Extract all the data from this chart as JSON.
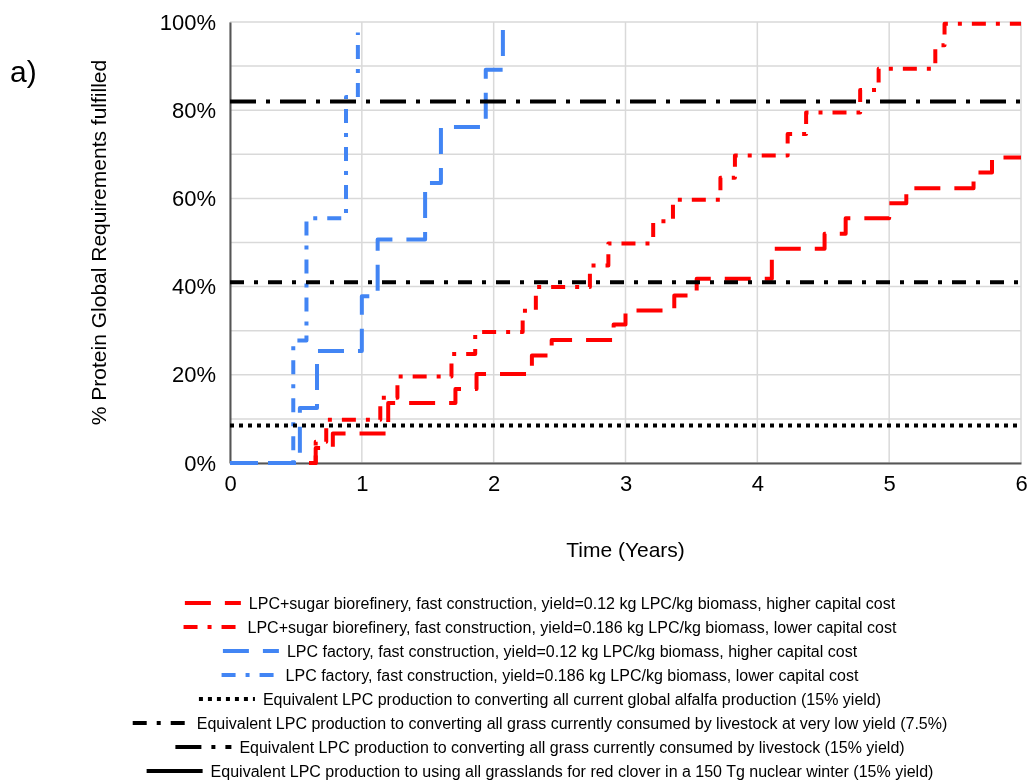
{
  "chart_data": {
    "type": "step",
    "xlabel": "Time (Years)",
    "ylabel": "% Protein Global Requirements fulfilled",
    "annotations": [
      "a)"
    ],
    "xlim": [
      0,
      6
    ],
    "ylim": [
      0,
      100
    ],
    "xticks": [
      0,
      1,
      2,
      3,
      4,
      5,
      6
    ],
    "yticks": [
      {
        "value": 0,
        "label": "0%"
      },
      {
        "value": 10,
        "label": null
      },
      {
        "value": 20,
        "label": "20%"
      },
      {
        "value": 30,
        "label": null
      },
      {
        "value": 40,
        "label": "40%"
      },
      {
        "value": 50,
        "label": null
      },
      {
        "value": 60,
        "label": "60%"
      },
      {
        "value": 70,
        "label": null
      },
      {
        "value": 80,
        "label": "80%"
      },
      {
        "value": 90,
        "label": null
      },
      {
        "value": 100,
        "label": "100%"
      }
    ],
    "grid": true,
    "legend": "bottom",
    "marker": "none",
    "series": [
      {
        "name": "LPC+sugar biorefinery, fast construction, yield=0.12 kg LPC/kg biomass, higher capital cost",
        "color": "#ff0000",
        "line_style": "dashed",
        "x": [
          0.6,
          0.65,
          0.78,
          1.2,
          1.71,
          1.87,
          2.29,
          2.44,
          2.91,
          3.0,
          3.37,
          3.54,
          4.11,
          4.51,
          4.67,
          5.0,
          5.13,
          5.64,
          5.78,
          6
        ],
        "values": [
          0,
          3.4,
          6.7,
          13.6,
          16.8,
          20.2,
          24.4,
          27.9,
          31.4,
          34.6,
          38,
          41.8,
          48.6,
          52,
          55.5,
          58.9,
          62.3,
          65.9,
          69.3,
          69.3
        ]
      },
      {
        "name": "LPC+sugar biorefinery, fast construction, yield=0.186 kg LPC/kg biomass, lower capital cost",
        "color": "#ff0000",
        "line_style": "dashdot",
        "x": [
          0.6,
          0.65,
          0.73,
          1.14,
          1.27,
          1.68,
          1.86,
          2.22,
          2.32,
          2.73,
          2.87,
          3.21,
          3.36,
          3.72,
          3.83,
          4.23,
          4.37,
          4.78,
          4.92,
          5.35,
          5.42,
          6
        ],
        "values": [
          0,
          4.8,
          9.8,
          14.8,
          19.6,
          24.7,
          29.7,
          34.5,
          39.9,
          44.8,
          49.8,
          54.8,
          59.7,
          64.7,
          69.7,
          74.6,
          79.5,
          84.6,
          89.4,
          94.7,
          99.6,
          99.6
        ]
      },
      {
        "name": "LPC factory, fast construction, yield=0.12 kg LPC/kg biomass, higher capital cost",
        "color": "#4285f4",
        "line_style": "dashed",
        "x": [
          0,
          0.53,
          0.66,
          1.0,
          1.12,
          1.48,
          1.6,
          1.94,
          2.07
        ],
        "values": [
          0,
          12.5,
          25.4,
          37.8,
          50.7,
          63.5,
          76.2,
          89.2,
          100
        ]
      },
      {
        "name": "LPC factory, fast construction, yield=0.186 kg LPC/kg biomass, lower capital cost",
        "color": "#4285f4",
        "line_style": "dashdot",
        "x": [
          0,
          0.48,
          0.58,
          0.88,
          0.97
        ],
        "values": [
          0,
          27.8,
          55.5,
          83,
          97.6
        ]
      },
      {
        "name": "Equivalent LPC production to converting all current global alfalfa production (15% yield)",
        "type": "line",
        "color": "#000000",
        "line_style": "dotted",
        "x": [
          0,
          6
        ],
        "values": [
          8.5,
          8.5
        ]
      },
      {
        "name": "Equivalent LPC production to converting all grass currently consumed by livestock at very low yield (7.5%)",
        "type": "line",
        "color": "#000000",
        "line_style": "dashdot",
        "x": [
          0,
          6
        ],
        "values": [
          41,
          41
        ]
      },
      {
        "name": "Equivalent LPC production to converting all grass currently consumed by livestock (15% yield)",
        "type": "line",
        "color": "#000000",
        "line_style": "longdashdot",
        "x": [
          0,
          6
        ],
        "values": [
          82,
          82
        ]
      },
      {
        "name": "Equivalent LPC production to using all grasslands for red clover in a 150 Tg nuclear winter (15% yield)",
        "type": "line",
        "color": "#000000",
        "line_style": "solid",
        "values": [
          null
        ]
      }
    ]
  }
}
